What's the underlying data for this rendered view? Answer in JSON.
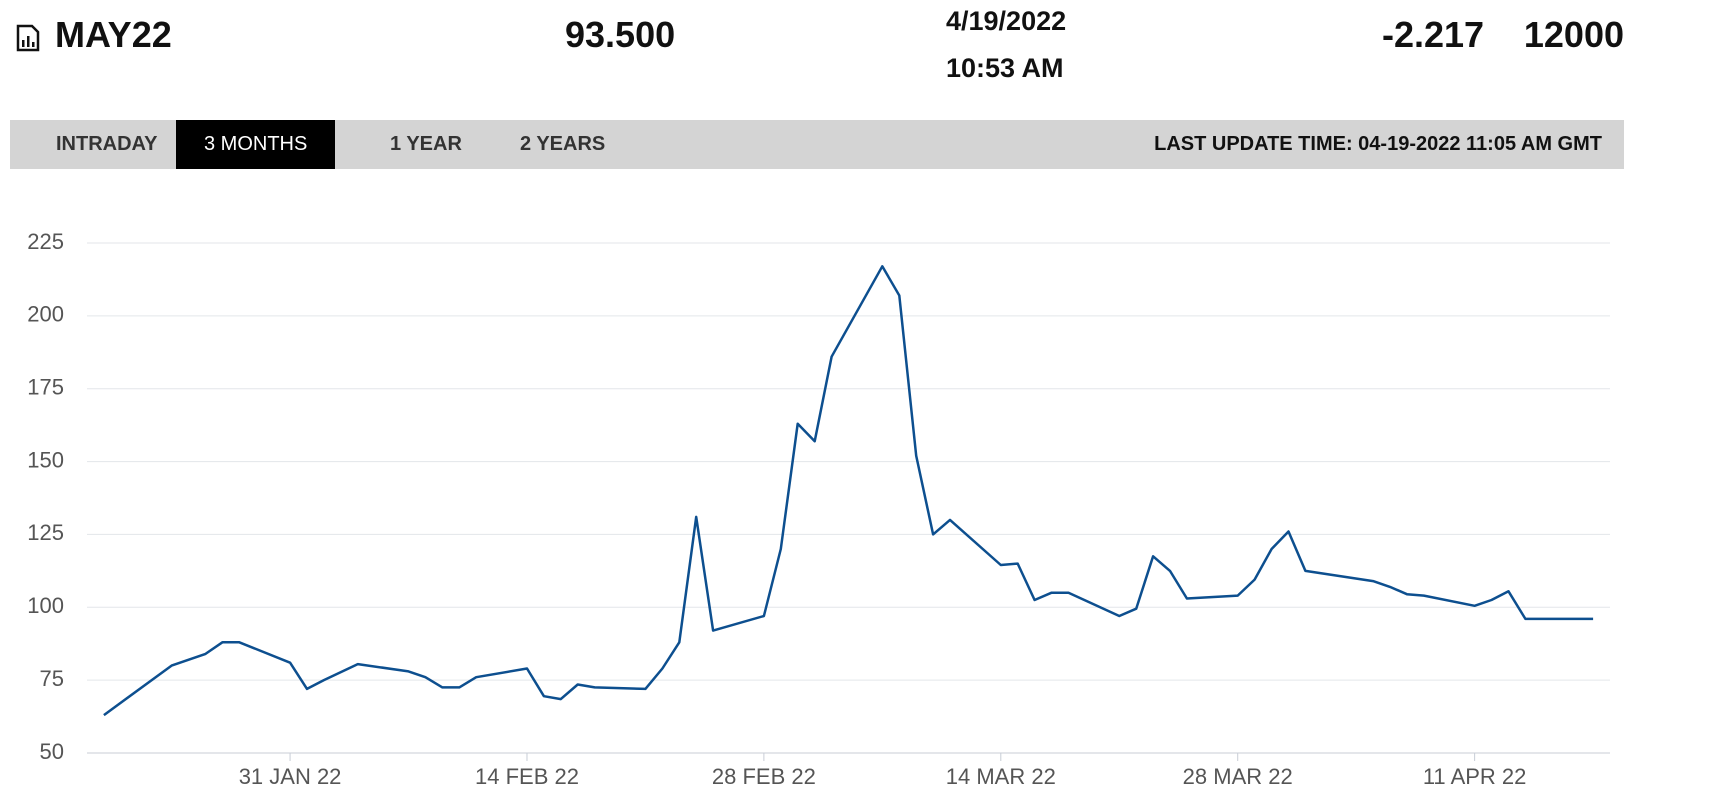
{
  "header": {
    "symbol": "MAY22",
    "price": "93.500",
    "date": "4/19/2022",
    "time": "10:53 AM",
    "change": "-2.217",
    "volume": "12000"
  },
  "tabs": [
    "INTRADAY",
    "3 MONTHS",
    "1 YEAR",
    "2 YEARS"
  ],
  "active_tab": 1,
  "last_update": "LAST UPDATE TIME: 04-19-2022 11:05 AM GMT",
  "chart_data": {
    "type": "line",
    "color": "#0d4f8f",
    "grid": true,
    "x": [
      "2022-01-20",
      "2022-01-24",
      "2022-01-26",
      "2022-01-27",
      "2022-01-28",
      "2022-01-31",
      "2022-02-01",
      "2022-02-02",
      "2022-02-04",
      "2022-02-07",
      "2022-02-08",
      "2022-02-09",
      "2022-02-10",
      "2022-02-11",
      "2022-02-14",
      "2022-02-15",
      "2022-02-16",
      "2022-02-17",
      "2022-02-18",
      "2022-02-21",
      "2022-02-22",
      "2022-02-23",
      "2022-02-24",
      "2022-02-25",
      "2022-02-28",
      "2022-03-01",
      "2022-03-02",
      "2022-03-03",
      "2022-03-04",
      "2022-03-07",
      "2022-03-08",
      "2022-03-09",
      "2022-03-10",
      "2022-03-11",
      "2022-03-14",
      "2022-03-15",
      "2022-03-16",
      "2022-03-17",
      "2022-03-18",
      "2022-03-21",
      "2022-03-22",
      "2022-03-23",
      "2022-03-24",
      "2022-03-25",
      "2022-03-28",
      "2022-03-29",
      "2022-03-30",
      "2022-03-31",
      "2022-04-01",
      "2022-04-05",
      "2022-04-06",
      "2022-04-07",
      "2022-04-08",
      "2022-04-11",
      "2022-04-12",
      "2022-04-13",
      "2022-04-14",
      "2022-04-18"
    ],
    "values": [
      63,
      80,
      84,
      88,
      88,
      81,
      72,
      75,
      80.5,
      78,
      76,
      72.5,
      72.5,
      76,
      79,
      69.5,
      68.5,
      73.5,
      72.5,
      72,
      79,
      88,
      131,
      92,
      97,
      120,
      163,
      157,
      186,
      217,
      207,
      152,
      125,
      130,
      114.5,
      115,
      102.5,
      105,
      105,
      97,
      99.5,
      117.5,
      112.5,
      103,
      104,
      109.5,
      120,
      126,
      112.5,
      109,
      107,
      104.5,
      104,
      100.5,
      102.5,
      105.5,
      96,
      96
    ],
    "xlim": [
      "2022-01-19",
      "2022-04-19"
    ],
    "xticks": [
      {
        "value": "2022-01-31",
        "label": "31 JAN 22"
      },
      {
        "value": "2022-02-14",
        "label": "14 FEB 22"
      },
      {
        "value": "2022-02-28",
        "label": "28 FEB 22"
      },
      {
        "value": "2022-03-14",
        "label": "14 MAR 22"
      },
      {
        "value": "2022-03-28",
        "label": "28 MAR 22"
      },
      {
        "value": "2022-04-11",
        "label": "11 APR 22"
      }
    ],
    "ylim": [
      50,
      225
    ],
    "yticks": [
      50,
      75,
      100,
      125,
      150,
      175,
      200,
      225
    ]
  }
}
